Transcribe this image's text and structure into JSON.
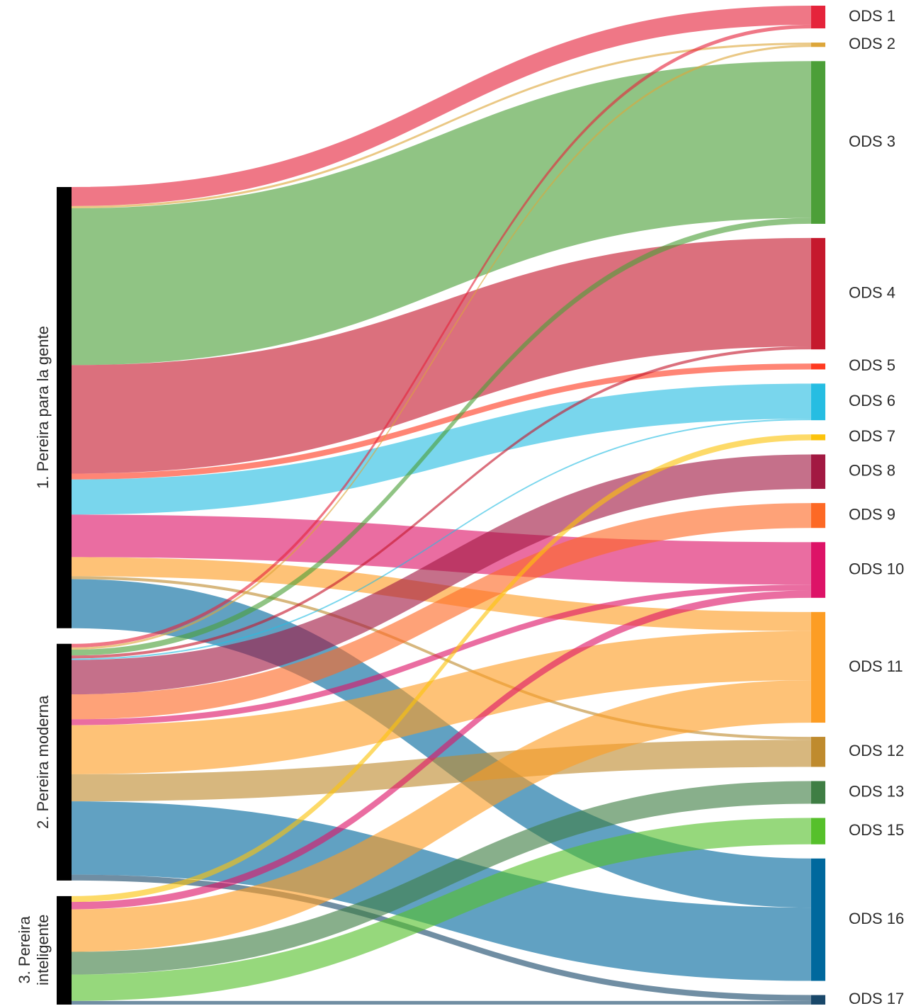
{
  "chart_data": {
    "type": "sankey",
    "nodes": [
      "1. Pereira para la gente",
      "2. Pereira moderna",
      "3. Pereira\ninteligente",
      "ODS 1",
      "ODS 2",
      "ODS 3",
      "ODS 4",
      "ODS 5",
      "ODS 6",
      "ODS 7",
      "ODS 8",
      "ODS 9",
      "ODS 10",
      "ODS 11",
      "ODS 12",
      "ODS 13",
      "ODS 15",
      "ODS 16",
      "ODS 17"
    ],
    "node_colors": [
      "#000000",
      "#000000",
      "#000000",
      "#e5243b",
      "#dda63a",
      "#4c9f38",
      "#c5192d",
      "#ff3a21",
      "#26bde2",
      "#fcc30b",
      "#a21942",
      "#fd6925",
      "#dd1367",
      "#fd9d24",
      "#bf8b2e",
      "#3f7e44",
      "#56c02b",
      "#00689d",
      "#19486a"
    ],
    "links": [
      {
        "source": 0,
        "target": 3,
        "value": 26
      },
      {
        "source": 0,
        "target": 4,
        "value": 3
      },
      {
        "source": 0,
        "target": 5,
        "value": 214
      },
      {
        "source": 0,
        "target": 6,
        "value": 148
      },
      {
        "source": 0,
        "target": 7,
        "value": 8
      },
      {
        "source": 0,
        "target": 8,
        "value": 48
      },
      {
        "source": 0,
        "target": 12,
        "value": 58
      },
      {
        "source": 0,
        "target": 13,
        "value": 26
      },
      {
        "source": 0,
        "target": 14,
        "value": 4
      },
      {
        "source": 0,
        "target": 17,
        "value": 67
      },
      {
        "source": 1,
        "target": 3,
        "value": 5
      },
      {
        "source": 1,
        "target": 4,
        "value": 3
      },
      {
        "source": 1,
        "target": 5,
        "value": 8
      },
      {
        "source": 1,
        "target": 6,
        "value": 4
      },
      {
        "source": 1,
        "target": 8,
        "value": 2
      },
      {
        "source": 1,
        "target": 10,
        "value": 47
      },
      {
        "source": 1,
        "target": 11,
        "value": 34
      },
      {
        "source": 1,
        "target": 12,
        "value": 8
      },
      {
        "source": 1,
        "target": 13,
        "value": 67
      },
      {
        "source": 1,
        "target": 14,
        "value": 37
      },
      {
        "source": 1,
        "target": 17,
        "value": 100
      },
      {
        "source": 1,
        "target": 18,
        "value": 8
      },
      {
        "source": 2,
        "target": 9,
        "value": 8
      },
      {
        "source": 2,
        "target": 12,
        "value": 10
      },
      {
        "source": 2,
        "target": 13,
        "value": 58
      },
      {
        "source": 2,
        "target": 15,
        "value": 31
      },
      {
        "source": 2,
        "target": 16,
        "value": 36
      },
      {
        "source": 2,
        "target": 18,
        "value": 5
      }
    ]
  }
}
